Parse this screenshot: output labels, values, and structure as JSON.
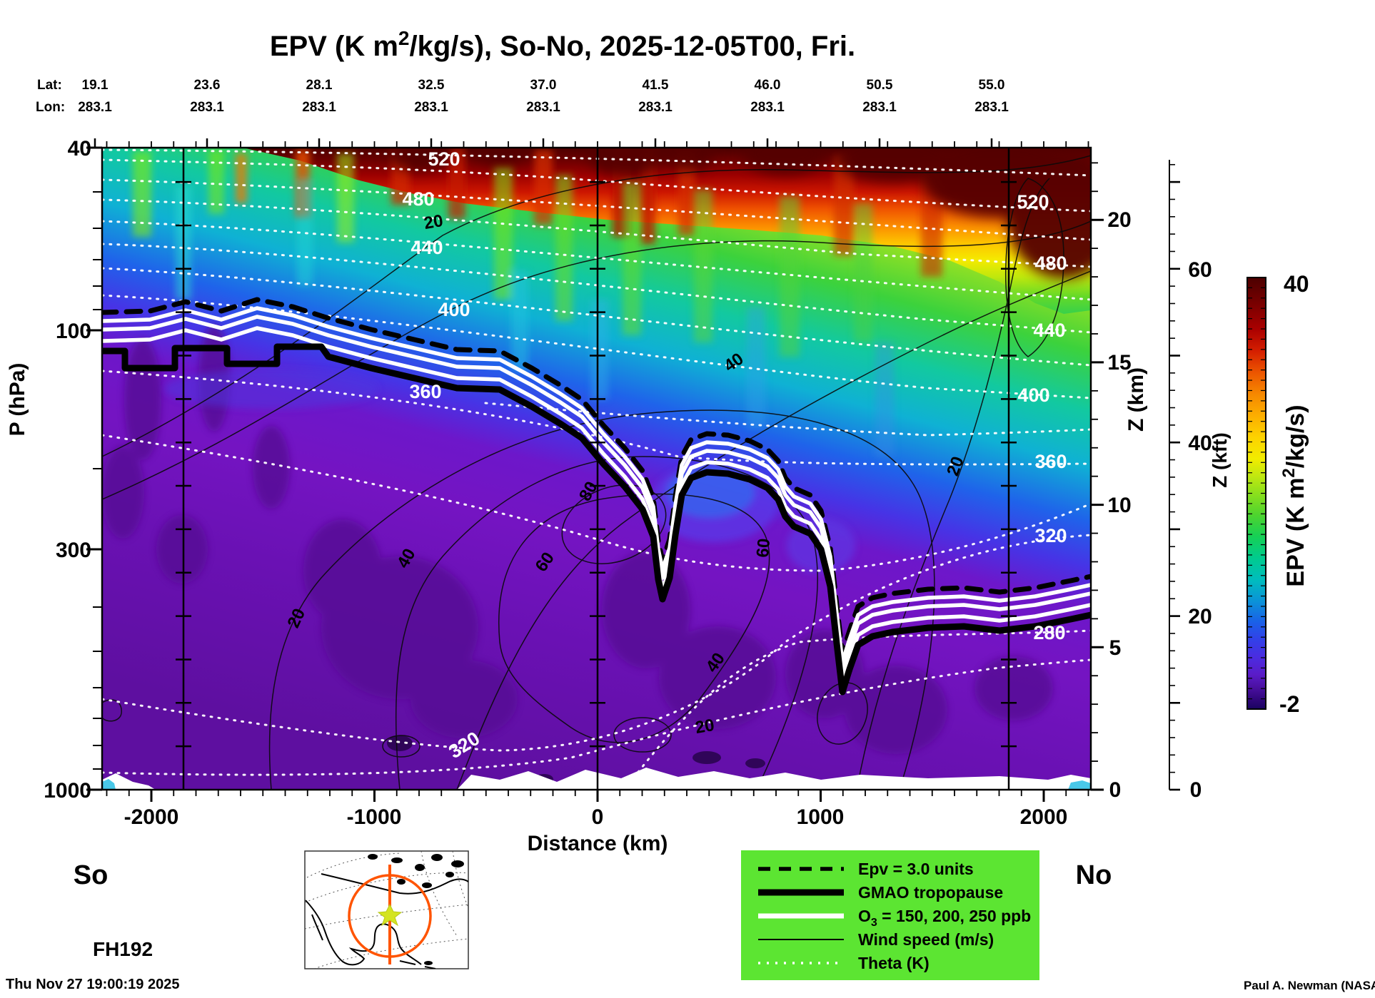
{
  "title": {
    "part1": "EPV (K m",
    "sup": "2",
    "part2": "/kg/s), So-No, 2025-12-05T00, Fri."
  },
  "top_axis": {
    "lat_label": "Lat:",
    "lon_label": "Lon:",
    "lat_values": [
      "19.1",
      "23.6",
      "28.1",
      "32.5",
      "37.0",
      "41.5",
      "46.0",
      "50.5",
      "55.0"
    ],
    "lon_values": [
      "283.1",
      "283.1",
      "283.1",
      "283.1",
      "283.1",
      "283.1",
      "283.1",
      "283.1",
      "283.1"
    ]
  },
  "axes": {
    "pressure": {
      "label": "P (hPa)",
      "ticks": [
        "40",
        "100",
        "300",
        "1000"
      ]
    },
    "distance": {
      "label": "Distance (km)",
      "ticks": [
        "-2000",
        "-1000",
        "0",
        "1000",
        "2000"
      ]
    },
    "z_km": {
      "label": "Z (km)",
      "ticks": [
        "20",
        "15",
        "10",
        "5",
        "0"
      ]
    },
    "z_kft": {
      "label": "Z (kft)",
      "ticks": [
        "60",
        "40",
        "20",
        "0"
      ]
    }
  },
  "colorbar": {
    "title_part1": "EPV (K m",
    "title_sup": "2",
    "title_part2": "/kg/s)",
    "max": "40",
    "min": "-2"
  },
  "contour_labels": {
    "theta_left": [
      "520",
      "480",
      "440",
      "400",
      "360"
    ],
    "theta_right": [
      "520",
      "480",
      "440",
      "400",
      "360",
      "320",
      "280"
    ],
    "theta_lower": "320",
    "wind": [
      "20",
      "40",
      "80",
      "60",
      "60",
      "40",
      "20",
      "40",
      "20",
      "20"
    ]
  },
  "legend": {
    "items": [
      {
        "label": "Epv = 3.0 units"
      },
      {
        "label": "GMAO tropopause"
      },
      {
        "pre": "O",
        "sub": "3",
        "post": " = 150, 200, 250 ppb"
      },
      {
        "label": "Wind speed (m/s)"
      },
      {
        "label": "Theta (K)"
      }
    ]
  },
  "footer": {
    "south_label": "So",
    "north_label": "No",
    "forecast_hour": "FH192",
    "timestamp": "Thu Nov 27 19:00:19 2025",
    "attribution": "Paul A. Newman (NASA"
  },
  "colors": {
    "legend_bg": "#5ce532",
    "map_circle": "#ff5400",
    "map_star": "#d4e422",
    "colorbar_top": "#4c0000",
    "colorbar_bottom": "#1a0460"
  },
  "chart_data": {
    "type": "heatmap",
    "title": "EPV (K m2/kg/s), So-No, 2025-12-05T00, Fri.",
    "x": {
      "label": "Distance (km)",
      "range": [
        -2220,
        2210
      ],
      "major_ticks": [
        -2000,
        -1000,
        0,
        1000,
        2000
      ]
    },
    "y_pressure": {
      "label": "P (hPa)",
      "scale": "log",
      "range": [
        40,
        1000
      ],
      "ticks": [
        40,
        100,
        300,
        1000
      ]
    },
    "y_altitude_km": {
      "label": "Z (km)",
      "ticks": [
        0,
        5,
        10,
        15,
        20
      ]
    },
    "y_altitude_kft": {
      "label": "Z (kft)",
      "ticks": [
        0,
        20,
        40,
        60
      ]
    },
    "colorbar": {
      "label": "EPV (K m2/kg/s)",
      "range": [
        -2,
        40
      ]
    },
    "track": {
      "lat": [
        19.1,
        23.6,
        28.1,
        32.5,
        37.0,
        41.5,
        46.0,
        50.5,
        55.0
      ],
      "lon": [
        283.1,
        283.1,
        283.1,
        283.1,
        283.1,
        283.1,
        283.1,
        283.1,
        283.1
      ]
    },
    "contours": {
      "theta_K": {
        "levels_step": 20,
        "labeled_levels": [
          280,
          320,
          360,
          400,
          440,
          480,
          520
        ]
      },
      "wind_speed_ms": {
        "labeled_levels": [
          20,
          40,
          60,
          80
        ]
      },
      "ozone_ppb": [
        150,
        200,
        250
      ],
      "epv_contour_units": 3.0
    },
    "gmao_tropopause_km_hPa": [
      [
        -2220,
        103
      ],
      [
        -1080,
        111
      ],
      [
        -440,
        125
      ],
      [
        -20,
        177
      ],
      [
        280,
        355
      ],
      [
        390,
        192
      ],
      [
        750,
        201
      ],
      [
        940,
        254
      ],
      [
        1090,
        565
      ],
      [
        1290,
        433
      ],
      [
        1640,
        411
      ],
      [
        2210,
        386
      ]
    ],
    "forecast_hour": 192
  }
}
